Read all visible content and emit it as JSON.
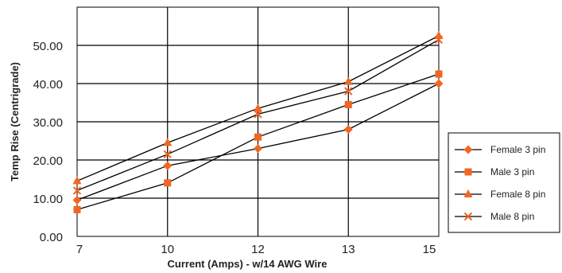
{
  "chart_data": {
    "type": "line",
    "title": "",
    "xlabel": "Current (Amps) - w/14 AWG Wire",
    "ylabel": "Temp Rise (Centrigrade)",
    "x_tick_labels": [
      "7",
      "10",
      "12",
      "13",
      "15"
    ],
    "y_tick_labels": [
      "0.00",
      "10.00",
      "20.00",
      "30.00",
      "40.00",
      "50.00"
    ],
    "ylim": [
      0,
      60
    ],
    "grid": true,
    "legend_position": "right",
    "marker_color": "#f26522",
    "line_color": "#000000",
    "series": [
      {
        "name": "Female 3 pin",
        "marker": "diamond",
        "x": [
          "7",
          "10",
          "12",
          "13",
          "15"
        ],
        "values": [
          9.5,
          18.5,
          23,
          28,
          40
        ]
      },
      {
        "name": "Male 3 pin",
        "marker": "square",
        "x": [
          "7",
          "10",
          "12",
          "13",
          "15"
        ],
        "values": [
          7,
          14,
          26,
          34.5,
          42.5
        ]
      },
      {
        "name": "Female 8 pin",
        "marker": "triangle",
        "x": [
          "7",
          "10",
          "12",
          "13",
          "15"
        ],
        "values": [
          14.5,
          24.5,
          33.5,
          40.5,
          52.5
        ]
      },
      {
        "name": "Male 8 pin",
        "marker": "x",
        "x": [
          "7",
          "10",
          "12",
          "13",
          "15"
        ],
        "values": [
          12,
          21.5,
          32,
          38,
          51.5
        ]
      }
    ]
  }
}
